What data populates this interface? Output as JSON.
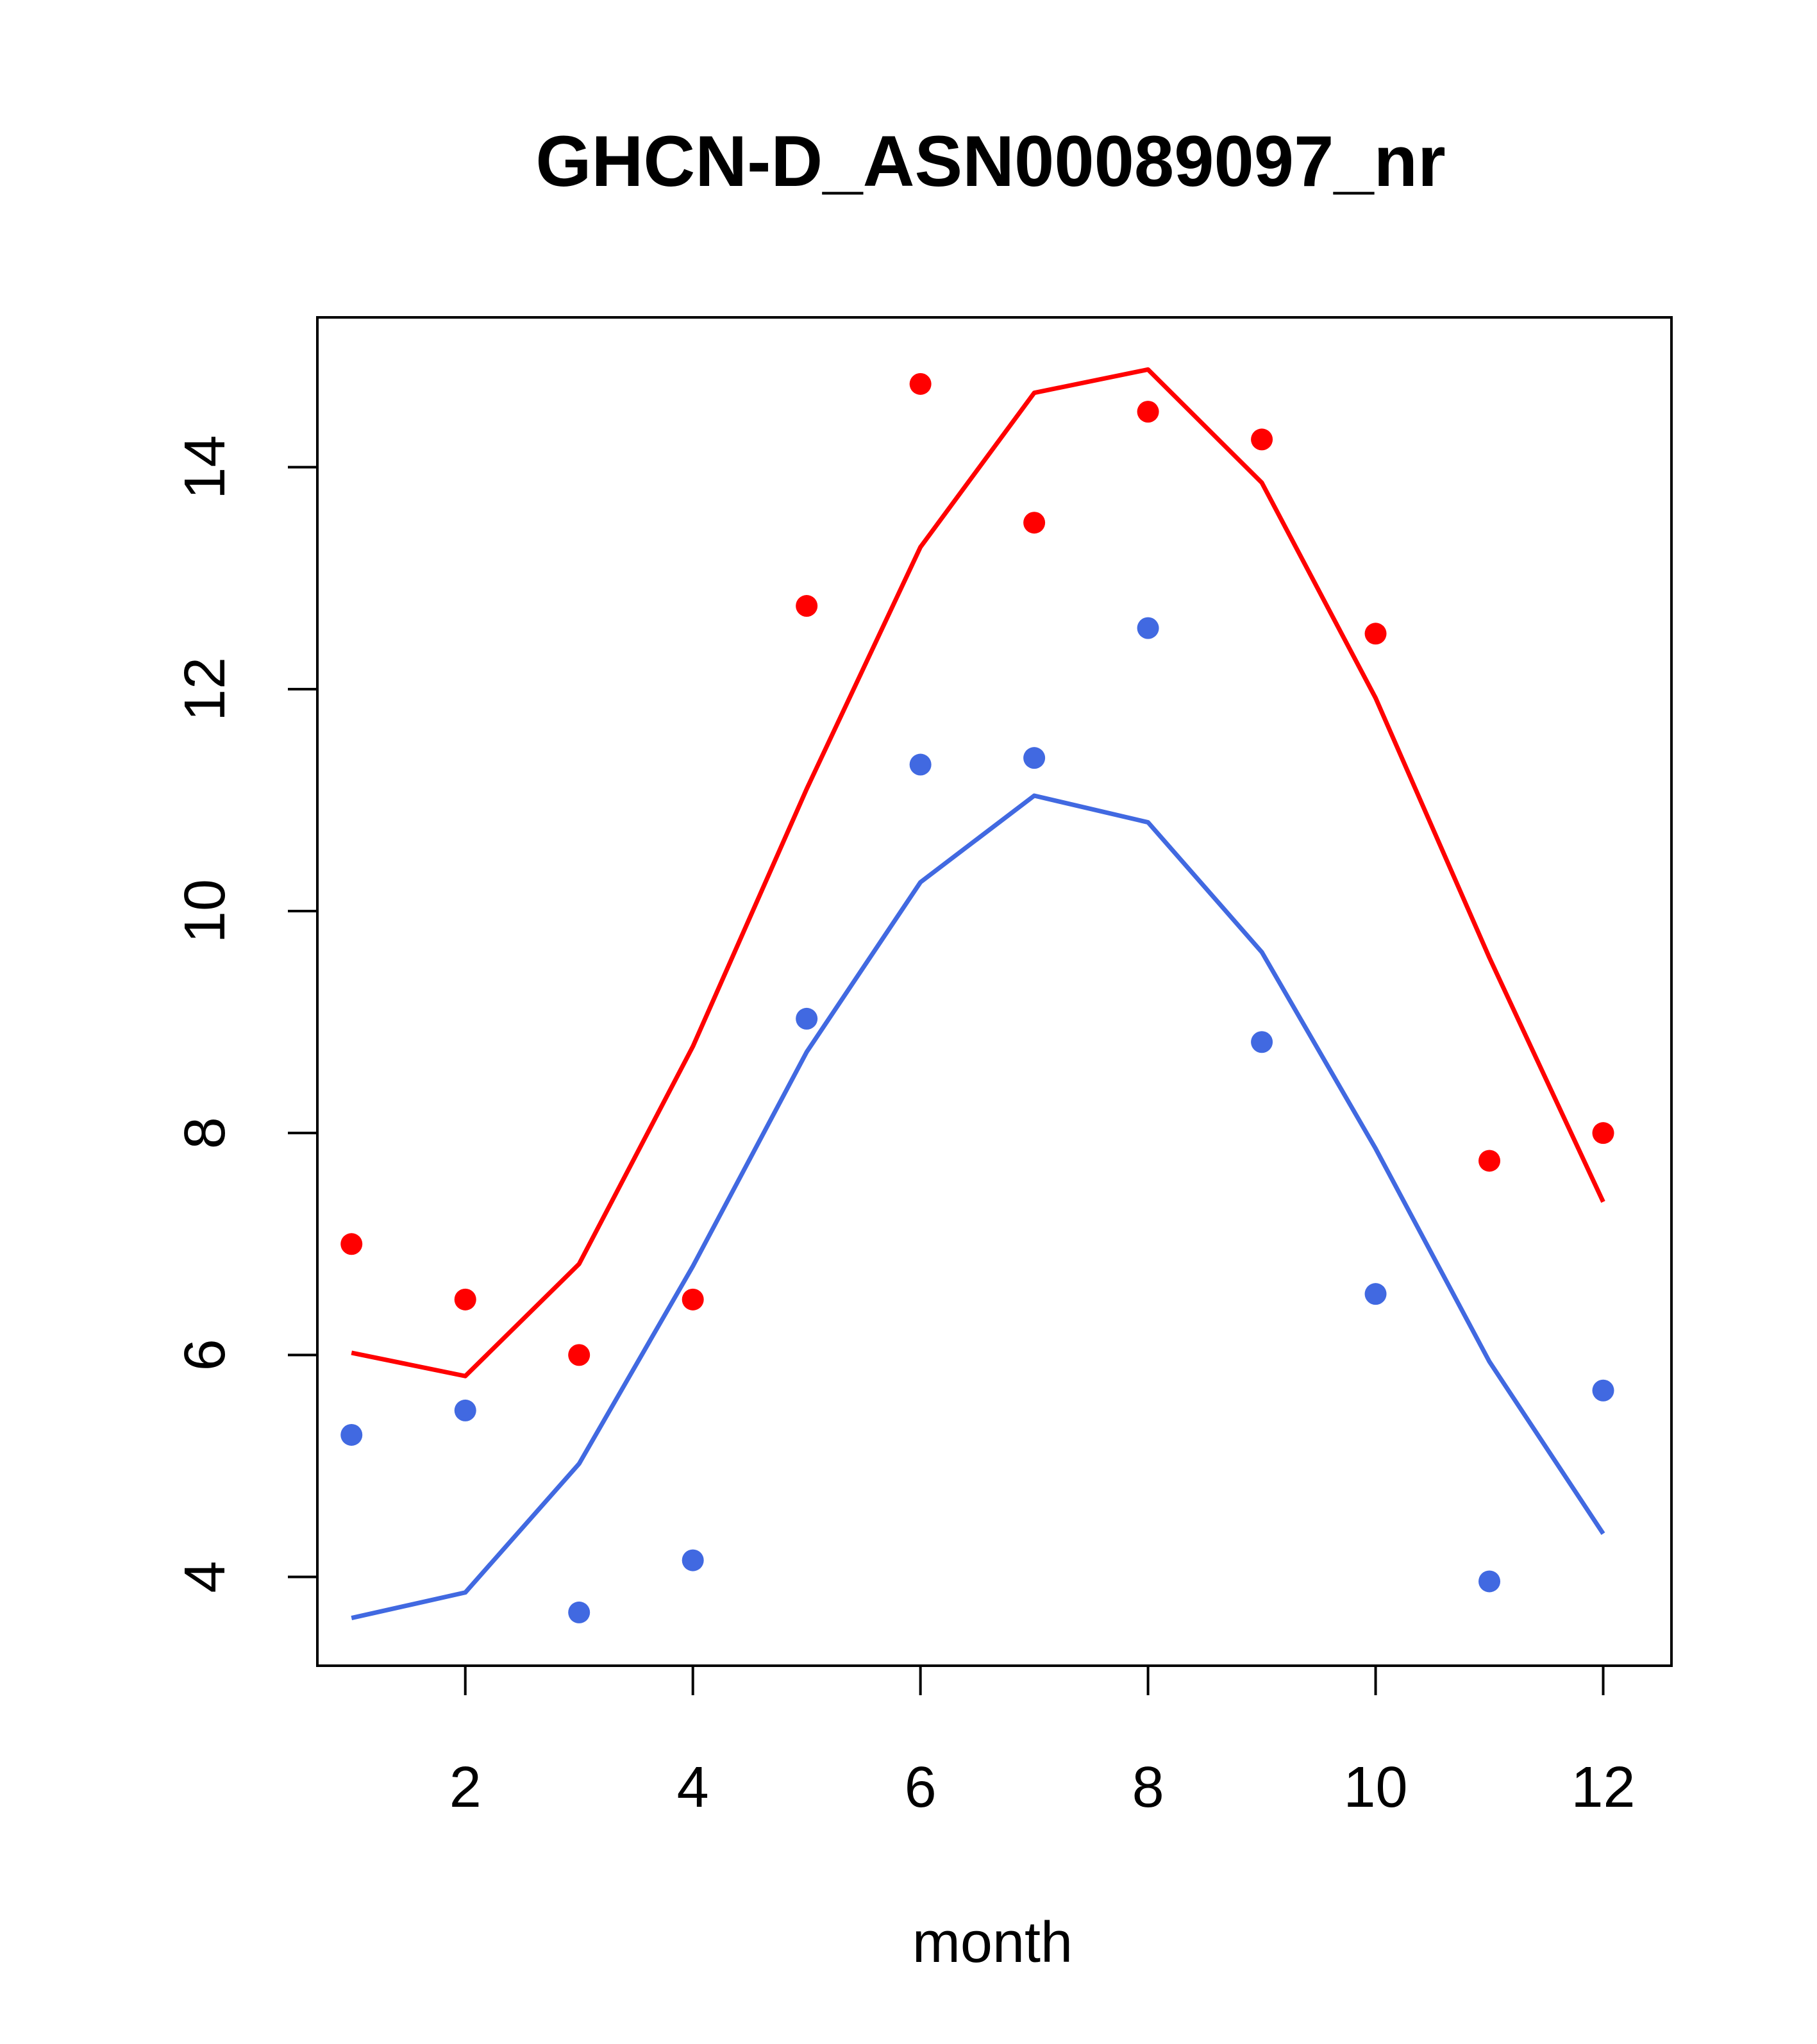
{
  "chart_data": {
    "type": "scatter",
    "title": "GHCN-D_ASN00089097_nr",
    "xlabel": "month",
    "ylabel": "",
    "xlim": [
      0.7,
      12.6
    ],
    "ylim": [
      3.2,
      15.35
    ],
    "xticks": [
      2,
      4,
      6,
      8,
      10,
      12
    ],
    "yticks": [
      4,
      6,
      8,
      10,
      12,
      14
    ],
    "grid": false,
    "legend": "none",
    "series": [
      {
        "color": "#ff0000",
        "points_x": [
          1,
          2,
          3,
          4,
          5,
          6,
          7,
          8,
          9,
          10,
          11,
          12
        ],
        "points_y": [
          7.0,
          6.5,
          6.0,
          6.5,
          12.75,
          14.75,
          13.5,
          14.5,
          14.25,
          12.5,
          7.75,
          8.0
        ],
        "line_x": [
          1,
          2,
          3,
          4,
          5,
          6,
          7,
          8,
          9,
          10,
          11,
          12
        ],
        "line_y": [
          6.02,
          5.81,
          6.82,
          8.78,
          11.1,
          13.28,
          14.67,
          14.88,
          13.86,
          11.92,
          9.58,
          7.38
        ]
      },
      {
        "color": "#4169e1",
        "points_x": [
          1,
          2,
          3,
          4,
          5,
          6,
          7,
          8,
          9,
          10,
          11,
          12
        ],
        "points_y": [
          5.28,
          5.5,
          3.68,
          4.15,
          9.03,
          11.32,
          11.38,
          12.55,
          8.82,
          6.55,
          3.96,
          5.68
        ],
        "line_x": [
          1,
          2,
          3,
          4,
          5,
          6,
          7,
          8,
          9,
          10,
          11,
          12
        ],
        "line_y": [
          3.63,
          3.86,
          5.02,
          6.8,
          8.73,
          10.26,
          11.04,
          10.8,
          9.63,
          7.86,
          5.94,
          4.39
        ]
      }
    ]
  }
}
